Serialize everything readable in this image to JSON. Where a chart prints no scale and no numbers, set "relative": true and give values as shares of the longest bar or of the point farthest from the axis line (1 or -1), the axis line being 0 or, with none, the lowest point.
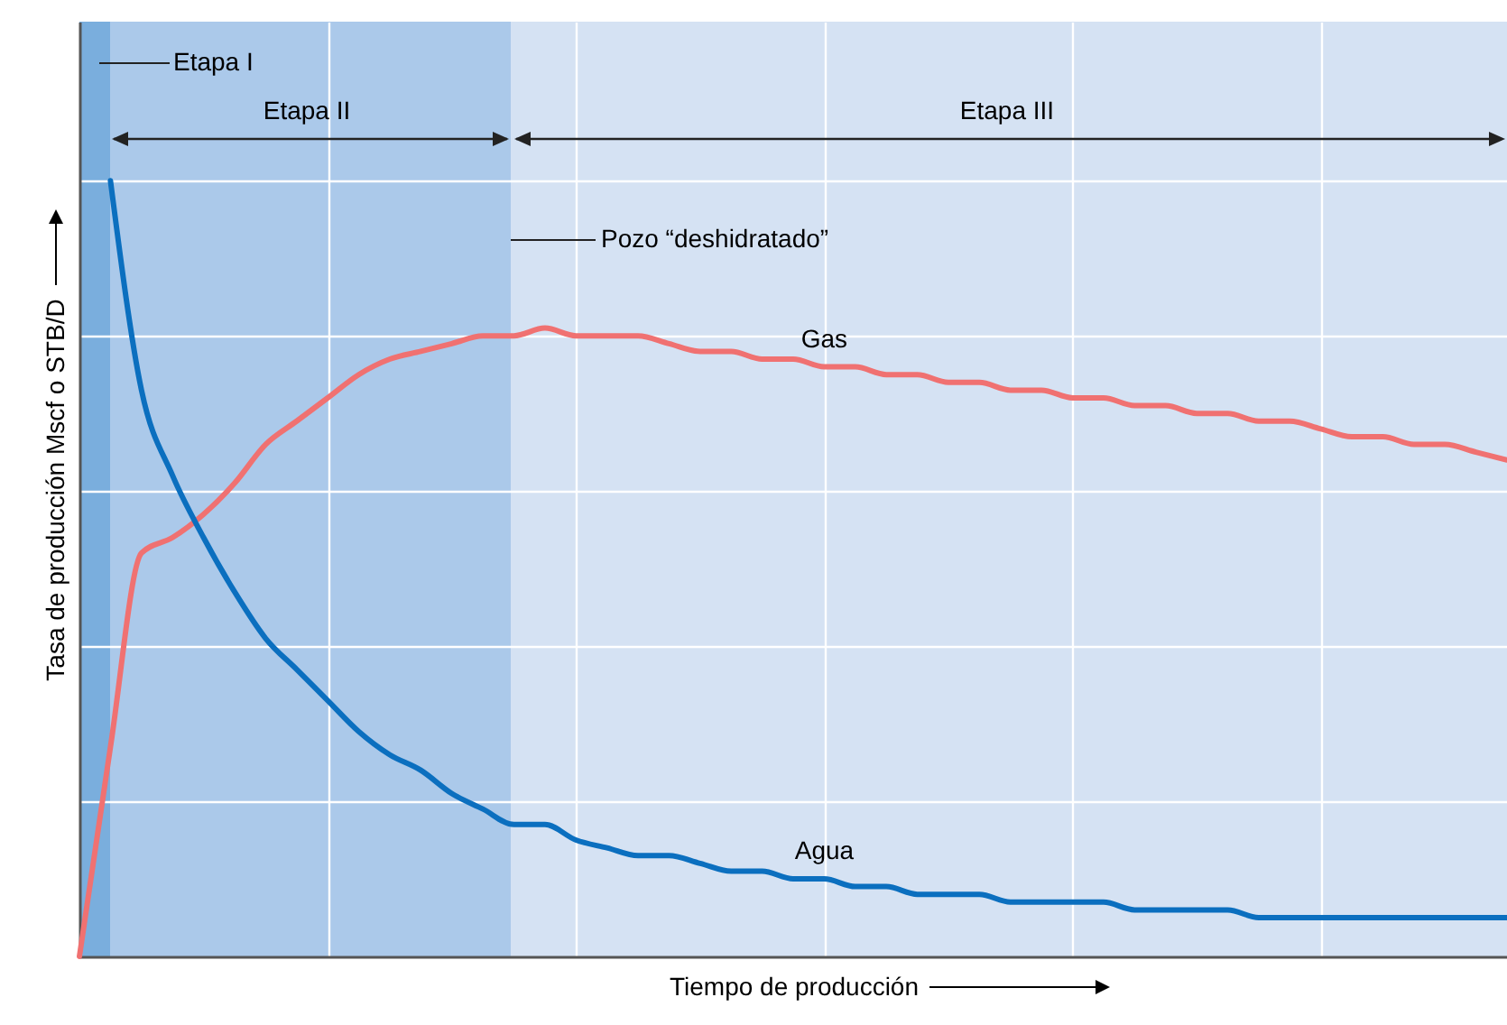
{
  "chart_data": {
    "type": "line",
    "relative": true,
    "xlabel": "Tiempo de producción",
    "ylabel": "Tasa de producción Mscf o STB/D",
    "grid": true,
    "categories": [
      null,
      null,
      null,
      null,
      null,
      null,
      null,
      null,
      null,
      null,
      null,
      null,
      null,
      null,
      null,
      null,
      null,
      null,
      null,
      null,
      null,
      null,
      null,
      null,
      null,
      null,
      null,
      null,
      null,
      null,
      null,
      null,
      null,
      null,
      null,
      null,
      null,
      null,
      null,
      null,
      null,
      null,
      null,
      null,
      null,
      null,
      null
    ],
    "series": [
      {
        "name": "Gas",
        "color": "#f07171",
        "values": [
          0,
          0.27,
          0.52,
          0.54,
          0.57,
          0.61,
          0.66,
          0.69,
          0.72,
          0.75,
          0.77,
          0.78,
          0.79,
          0.8,
          0.8,
          0.81,
          0.8,
          0.8,
          0.8,
          0.79,
          0.78,
          0.78,
          0.77,
          0.77,
          0.76,
          0.76,
          0.75,
          0.75,
          0.74,
          0.74,
          0.73,
          0.73,
          0.72,
          0.72,
          0.71,
          0.71,
          0.7,
          0.7,
          0.69,
          0.69,
          0.68,
          0.67,
          0.67,
          0.66,
          0.66,
          0.65,
          0.64
        ]
      },
      {
        "name": "Agua",
        "color": "#0b6fbf",
        "values": [
          null,
          1,
          0.73,
          0.62,
          0.54,
          0.47,
          0.41,
          0.37,
          0.33,
          0.29,
          0.26,
          0.24,
          0.21,
          0.19,
          0.17,
          0.17,
          0.15,
          0.14,
          0.13,
          0.13,
          0.12,
          0.11,
          0.11,
          0.1,
          0.1,
          0.09,
          0.09,
          0.08,
          0.08,
          0.08,
          0.07,
          0.07,
          0.07,
          0.07,
          0.06,
          0.06,
          0.06,
          0.06,
          0.05,
          0.05,
          0.05,
          0.05,
          0.05,
          0.05,
          0.05,
          0.05,
          0.05
        ]
      }
    ],
    "annotations": [
      "Etapa I",
      "Etapa II",
      "Etapa III",
      "Pozo “deshidratado”"
    ]
  }
}
